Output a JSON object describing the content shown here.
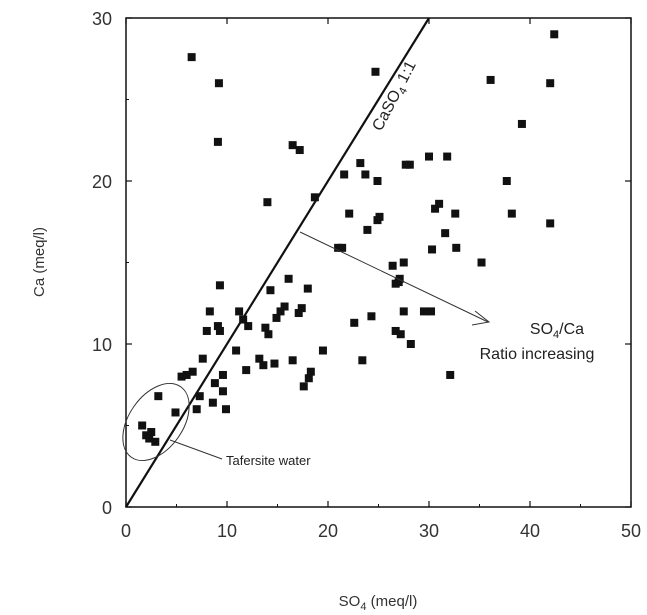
{
  "chart_data": {
    "type": "scatter",
    "xlabel": {
      "main": "SO",
      "sub": "4",
      "rest": " (meq/l)"
    },
    "ylabel": "Ca (meq/l)",
    "xlim": [
      0,
      50
    ],
    "ylim": [
      0,
      30
    ],
    "xticks": [
      0,
      10,
      20,
      30,
      40,
      50
    ],
    "yticks": [
      0,
      10,
      20,
      30
    ],
    "xtick_labels": [
      "0",
      "10",
      "20",
      "30",
      "40",
      "50"
    ],
    "ytick_labels": [
      "0",
      "10",
      "20",
      "30"
    ],
    "grid": false,
    "colors": {
      "points": "#111111",
      "axes": "#111111",
      "text": "#333333"
    },
    "reference_line": {
      "slope": 1,
      "label_main": "CaSO",
      "label_sub": "4",
      "label_rest": " 1:1"
    },
    "annotations": {
      "ratio_line1_main": "SO",
      "ratio_line1_sub": "4",
      "ratio_line1_rest": "/Ca",
      "ratio_line2": "Ratio increasing",
      "ellipse_label": "Tafersite water"
    },
    "points": [
      [
        1.6,
        5.0
      ],
      [
        2.0,
        4.4
      ],
      [
        2.5,
        4.6
      ],
      [
        2.9,
        4.0
      ],
      [
        2.3,
        4.2
      ],
      [
        3.2,
        6.8
      ],
      [
        4.9,
        5.8
      ],
      [
        5.5,
        8.0
      ],
      [
        6.0,
        8.1
      ],
      [
        6.6,
        8.3
      ],
      [
        7.0,
        6.0
      ],
      [
        7.3,
        6.8
      ],
      [
        7.6,
        9.1
      ],
      [
        8.0,
        10.8
      ],
      [
        8.3,
        12.0
      ],
      [
        8.6,
        6.4
      ],
      [
        8.8,
        7.6
      ],
      [
        9.1,
        11.1
      ],
      [
        9.3,
        13.6
      ],
      [
        9.3,
        10.8
      ],
      [
        9.6,
        7.1
      ],
      [
        9.1,
        22.4
      ],
      [
        9.6,
        8.1
      ],
      [
        9.9,
        6.0
      ],
      [
        6.5,
        27.6
      ],
      [
        9.2,
        26.0
      ],
      [
        10.9,
        9.6
      ],
      [
        11.2,
        12.0
      ],
      [
        11.6,
        11.5
      ],
      [
        11.9,
        8.4
      ],
      [
        12.1,
        11.1
      ],
      [
        13.2,
        9.1
      ],
      [
        13.6,
        8.7
      ],
      [
        13.8,
        11.0
      ],
      [
        14.0,
        18.7
      ],
      [
        14.3,
        13.3
      ],
      [
        14.1,
        10.6
      ],
      [
        14.7,
        8.8
      ],
      [
        14.9,
        11.6
      ],
      [
        15.3,
        12.0
      ],
      [
        15.7,
        12.3
      ],
      [
        16.1,
        14.0
      ],
      [
        16.5,
        9.0
      ],
      [
        16.5,
        22.2
      ],
      [
        17.2,
        21.9
      ],
      [
        17.1,
        11.9
      ],
      [
        17.4,
        12.2
      ],
      [
        17.6,
        7.4
      ],
      [
        18.0,
        13.4
      ],
      [
        18.3,
        8.3
      ],
      [
        18.1,
        7.9
      ],
      [
        18.7,
        19.0
      ],
      [
        19.5,
        9.6
      ],
      [
        21.0,
        15.9
      ],
      [
        21.4,
        15.9
      ],
      [
        21.6,
        20.4
      ],
      [
        22.1,
        18.0
      ],
      [
        22.6,
        11.3
      ],
      [
        23.2,
        21.1
      ],
      [
        23.4,
        9.0
      ],
      [
        23.7,
        20.4
      ],
      [
        23.9,
        17.0
      ],
      [
        24.3,
        11.7
      ],
      [
        24.7,
        26.7
      ],
      [
        24.9,
        20.0
      ],
      [
        24.9,
        17.6
      ],
      [
        25.1,
        17.8
      ],
      [
        26.4,
        14.8
      ],
      [
        26.7,
        13.7
      ],
      [
        26.7,
        10.8
      ],
      [
        27.2,
        10.6
      ],
      [
        27.1,
        14.0
      ],
      [
        27.5,
        15.0
      ],
      [
        27.5,
        12.0
      ],
      [
        27.7,
        21.0
      ],
      [
        28.1,
        21.0
      ],
      [
        28.2,
        10.0
      ],
      [
        29.5,
        12.0
      ],
      [
        30.0,
        21.5
      ],
      [
        30.3,
        15.8
      ],
      [
        30.6,
        18.3
      ],
      [
        31.0,
        18.6
      ],
      [
        31.6,
        16.8
      ],
      [
        31.8,
        21.5
      ],
      [
        32.1,
        8.1
      ],
      [
        32.6,
        18.0
      ],
      [
        32.7,
        15.9
      ],
      [
        35.2,
        15.0
      ],
      [
        36.1,
        26.2
      ],
      [
        37.7,
        20.0
      ],
      [
        38.2,
        18.0
      ],
      [
        39.2,
        23.5
      ],
      [
        42.0,
        26.0
      ],
      [
        42.0,
        17.4
      ],
      [
        42.4,
        29.0
      ],
      [
        30.2,
        12.0
      ],
      [
        27.0,
        13.8
      ]
    ]
  }
}
